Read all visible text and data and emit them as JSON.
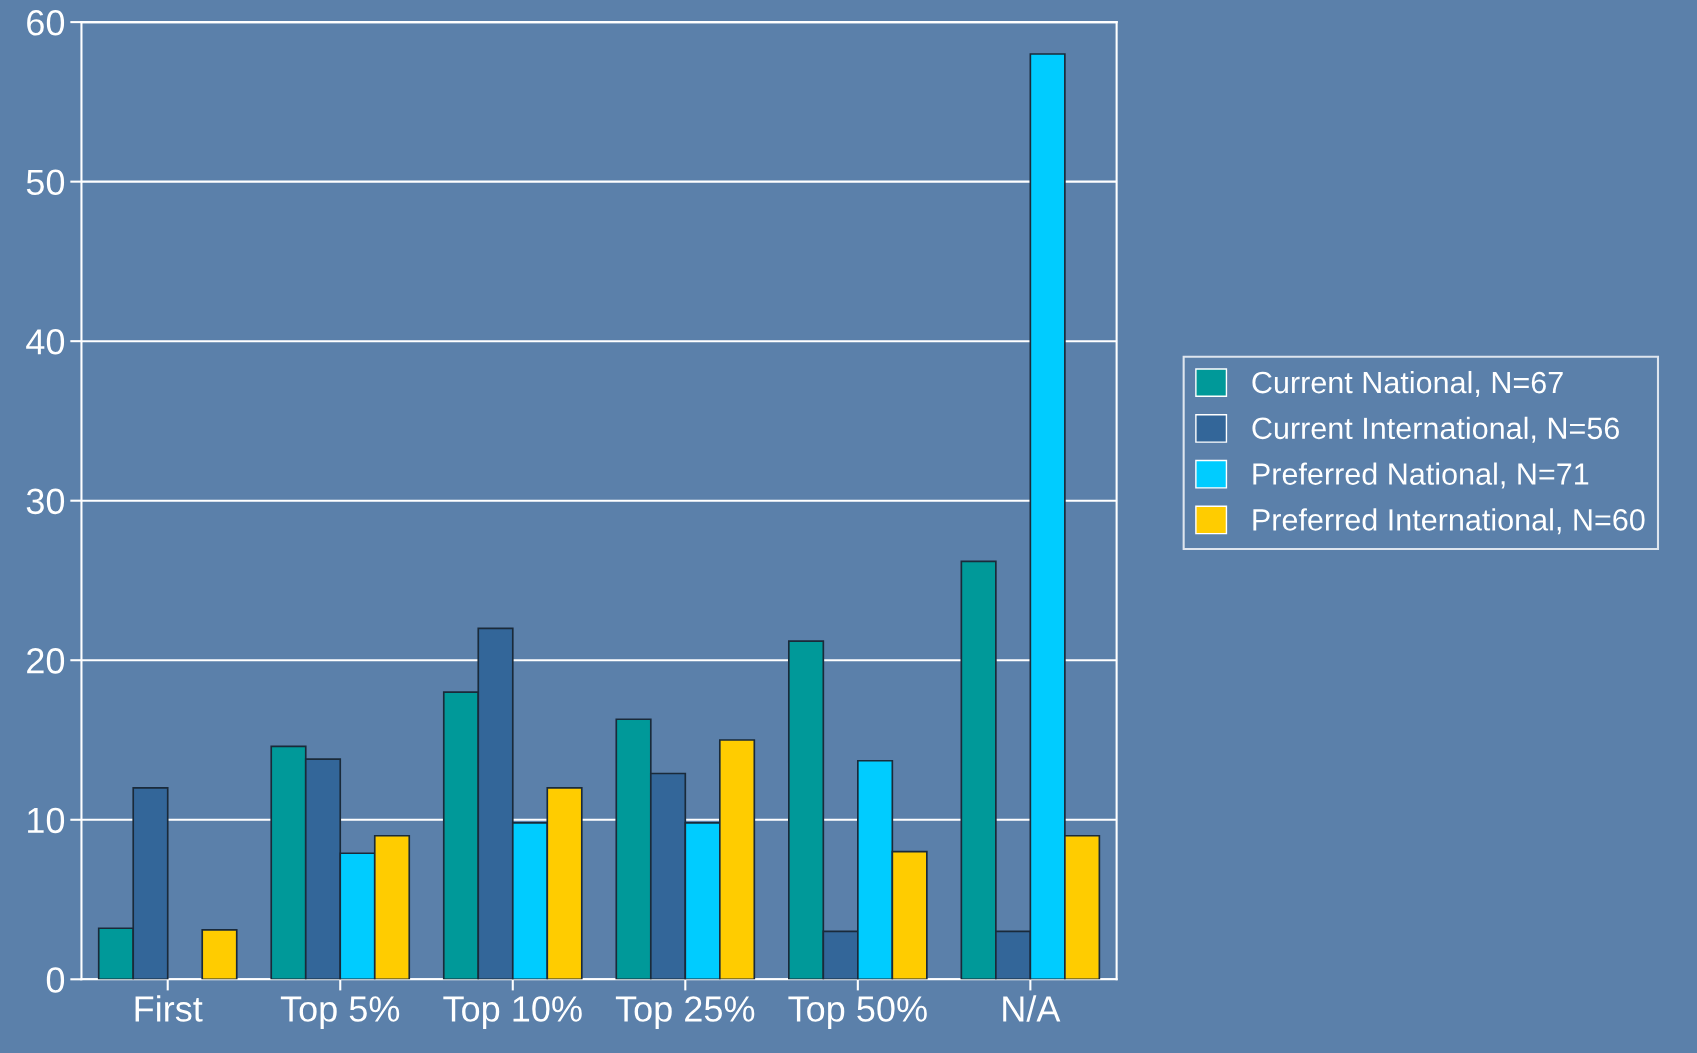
{
  "chart_data": {
    "type": "bar",
    "categories": [
      "First",
      "Top 5%",
      "Top 10%",
      "Top 25%",
      "Top 50%",
      "N/A"
    ],
    "series": [
      {
        "name": "Current National, N=67",
        "color": "#009999",
        "values": [
          3.2,
          14.6,
          18,
          16.3,
          21.2,
          26.2
        ]
      },
      {
        "name": "Current International, N=56",
        "color": "#336699",
        "values": [
          12,
          13.8,
          22,
          12.9,
          3,
          3
        ]
      },
      {
        "name": "Preferred National, N=71",
        "color": "#00ccff",
        "values": [
          0,
          7.9,
          9.8,
          9.8,
          13.7,
          58
        ]
      },
      {
        "name": "Preferred International, N=60",
        "color": "#ffcc00",
        "values": [
          3.1,
          9,
          12,
          15,
          8,
          9
        ]
      }
    ],
    "ylim": [
      0,
      60
    ],
    "yticks": [
      0,
      10,
      20,
      30,
      40,
      50,
      60
    ],
    "grid": "y",
    "legend": "right"
  }
}
